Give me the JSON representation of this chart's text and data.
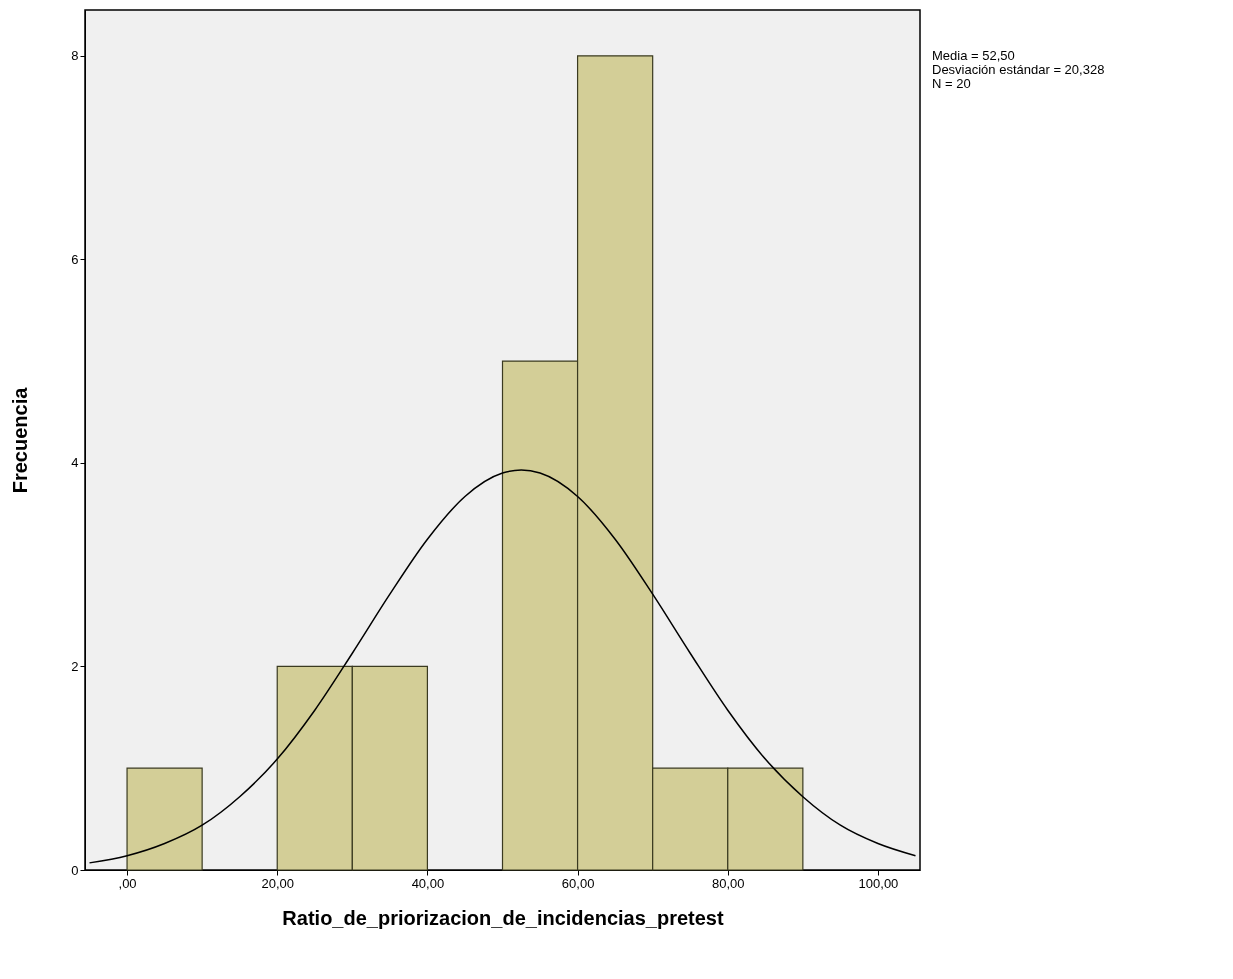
{
  "chart_data": {
    "type": "histogram",
    "xlabel": "Ratio_de_priorizacion_de_incidencias_pretest",
    "ylabel": "Frecuencia",
    "bins": [
      0,
      10,
      20,
      30,
      40,
      50,
      60,
      70,
      80,
      90
    ],
    "values": [
      1,
      0,
      2,
      2,
      0,
      5,
      8,
      1,
      1
    ],
    "color": "#d3ce97",
    "series": [
      {
        "type": "line",
        "color": "#000000",
        "x": [
          -5,
          0,
          5,
          10,
          15,
          20,
          25,
          30,
          35,
          40,
          45,
          50,
          52.5,
          55,
          60,
          65,
          70,
          75,
          80,
          85,
          90,
          95,
          100,
          105
        ],
        "values": [
          0.07,
          0.14,
          0.26,
          0.44,
          0.72,
          1.09,
          1.57,
          2.13,
          2.71,
          3.25,
          3.67,
          3.9,
          3.93,
          3.9,
          3.67,
          3.25,
          2.71,
          2.13,
          1.57,
          1.09,
          0.72,
          0.44,
          0.26,
          0.14
        ]
      }
    ],
    "xlim": [
      -5.6,
      105.6
    ],
    "xticks": [
      {
        "value": 0,
        "label": ",00"
      },
      {
        "value": 20,
        "label": "20,00"
      },
      {
        "value": 40,
        "label": "40,00"
      },
      {
        "value": 60,
        "label": "60,00"
      },
      {
        "value": 80,
        "label": "80,00"
      },
      {
        "value": 100,
        "label": "100,00"
      }
    ],
    "ylim": [
      0,
      8.45
    ],
    "yticks": [
      0,
      2,
      4,
      6,
      8
    ],
    "grid": false,
    "annotations": [
      "Media = 52,50",
      "Desviación estándar = 20,328",
      "N = 20"
    ]
  }
}
